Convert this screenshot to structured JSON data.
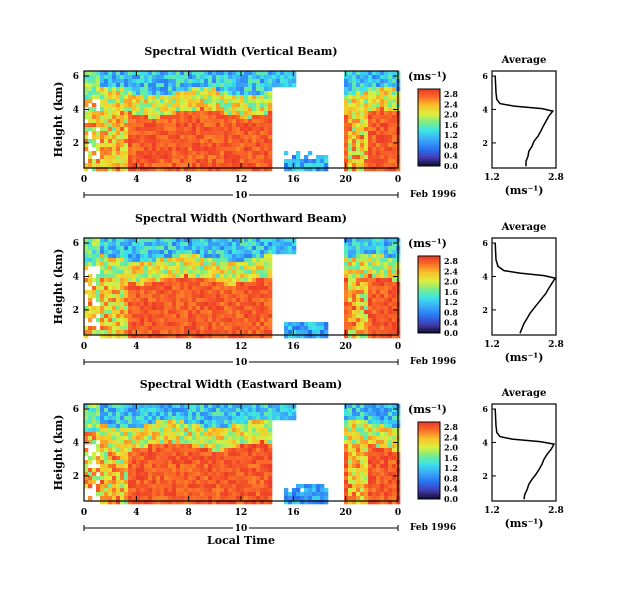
{
  "chart_data": [
    {
      "type": "heatmap",
      "title": "Spectral Width (Vertical Beam)",
      "ylabel": "Height (km)",
      "xlabel": "",
      "xlim": [
        0,
        24
      ],
      "ylim": [
        0.5,
        6.3
      ],
      "x_ticks": [
        "0",
        "4",
        "8",
        "12",
        "16",
        "20",
        "0"
      ],
      "y_ticks": [
        "2",
        "4",
        "6"
      ],
      "date_label": "10",
      "date_suffix": "Feb 1996",
      "colorbar": {
        "unit": "(ms⁻¹)",
        "ticks": [
          "0.0",
          "0.4",
          "0.8",
          "1.2",
          "1.6",
          "2.0",
          "2.4",
          "2.8"
        ],
        "range": [
          0,
          3.0
        ]
      },
      "profile": {
        "title": "Average",
        "xlabel": "(ms⁻¹)",
        "x_ticks": [
          "1.2",
          "2.8"
        ],
        "y_ticks": [
          "2",
          "4",
          "6"
        ],
        "xlim": [
          1.2,
          2.8
        ],
        "ylim": [
          0.5,
          6.3
        ],
        "points": [
          [
            2.05,
            0.6
          ],
          [
            2.05,
            0.9
          ],
          [
            2.1,
            1.2
          ],
          [
            2.12,
            1.5
          ],
          [
            2.2,
            1.8
          ],
          [
            2.25,
            2.1
          ],
          [
            2.35,
            2.4
          ],
          [
            2.42,
            2.7
          ],
          [
            2.48,
            3.0
          ],
          [
            2.55,
            3.3
          ],
          [
            2.62,
            3.6
          ],
          [
            2.72,
            3.9
          ],
          [
            2.45,
            4.05
          ],
          [
            1.75,
            4.2
          ],
          [
            1.4,
            4.35
          ],
          [
            1.32,
            4.6
          ],
          [
            1.3,
            5.0
          ],
          [
            1.28,
            6.0
          ]
        ]
      }
    },
    {
      "type": "heatmap",
      "title": "Spectral Width (Northward Beam)",
      "ylabel": "Height (km)",
      "xlabel": "",
      "xlim": [
        0,
        24
      ],
      "ylim": [
        0.5,
        6.3
      ],
      "x_ticks": [
        "0",
        "4",
        "8",
        "12",
        "16",
        "20",
        "0"
      ],
      "y_ticks": [
        "2",
        "4",
        "6"
      ],
      "date_label": "10",
      "date_suffix": "Feb 1996",
      "colorbar": {
        "unit": "(ms⁻¹)",
        "ticks": [
          "0.0",
          "0.4",
          "0.8",
          "1.2",
          "1.6",
          "2.0",
          "2.4",
          "2.8"
        ],
        "range": [
          0,
          3.0
        ]
      },
      "profile": {
        "title": "Average",
        "xlabel": "(ms⁻¹)",
        "x_ticks": [
          "1.2",
          "2.8"
        ],
        "y_ticks": [
          "2",
          "4",
          "6"
        ],
        "xlim": [
          1.2,
          2.8
        ],
        "ylim": [
          0.5,
          6.3
        ],
        "points": [
          [
            1.9,
            0.6
          ],
          [
            1.95,
            0.9
          ],
          [
            2.0,
            1.2
          ],
          [
            2.08,
            1.5
          ],
          [
            2.15,
            1.8
          ],
          [
            2.25,
            2.1
          ],
          [
            2.35,
            2.4
          ],
          [
            2.45,
            2.7
          ],
          [
            2.55,
            3.0
          ],
          [
            2.62,
            3.3
          ],
          [
            2.7,
            3.6
          ],
          [
            2.78,
            3.9
          ],
          [
            2.5,
            4.05
          ],
          [
            1.9,
            4.2
          ],
          [
            1.5,
            4.35
          ],
          [
            1.35,
            4.6
          ],
          [
            1.3,
            5.0
          ],
          [
            1.28,
            6.0
          ]
        ]
      }
    },
    {
      "type": "heatmap",
      "title": "Spectral Width (Eastward Beam)",
      "ylabel": "Height (km)",
      "xlabel": "Local Time",
      "xlim": [
        0,
        24
      ],
      "ylim": [
        0.5,
        6.3
      ],
      "x_ticks": [
        "0",
        "4",
        "8",
        "12",
        "16",
        "20",
        "0"
      ],
      "y_ticks": [
        "2",
        "4",
        "6"
      ],
      "date_label": "10",
      "date_suffix": "Feb 1996",
      "colorbar": {
        "unit": "(ms⁻¹)",
        "ticks": [
          "0.0",
          "0.4",
          "0.8",
          "1.2",
          "1.6",
          "2.0",
          "2.4",
          "2.8"
        ],
        "range": [
          0,
          3.0
        ]
      },
      "profile": {
        "title": "Average",
        "xlabel": "(ms⁻¹)",
        "x_ticks": [
          "1.2",
          "2.8"
        ],
        "y_ticks": [
          "2",
          "4",
          "6"
        ],
        "xlim": [
          1.2,
          2.8
        ],
        "ylim": [
          0.5,
          6.3
        ],
        "points": [
          [
            2.0,
            0.6
          ],
          [
            2.02,
            0.9
          ],
          [
            2.08,
            1.2
          ],
          [
            2.12,
            1.5
          ],
          [
            2.2,
            1.8
          ],
          [
            2.3,
            2.1
          ],
          [
            2.38,
            2.4
          ],
          [
            2.45,
            2.7
          ],
          [
            2.5,
            3.0
          ],
          [
            2.58,
            3.3
          ],
          [
            2.68,
            3.6
          ],
          [
            2.75,
            3.9
          ],
          [
            2.4,
            4.05
          ],
          [
            1.7,
            4.2
          ],
          [
            1.4,
            4.35
          ],
          [
            1.32,
            4.6
          ],
          [
            1.3,
            5.0
          ],
          [
            1.28,
            6.0
          ]
        ]
      }
    }
  ]
}
